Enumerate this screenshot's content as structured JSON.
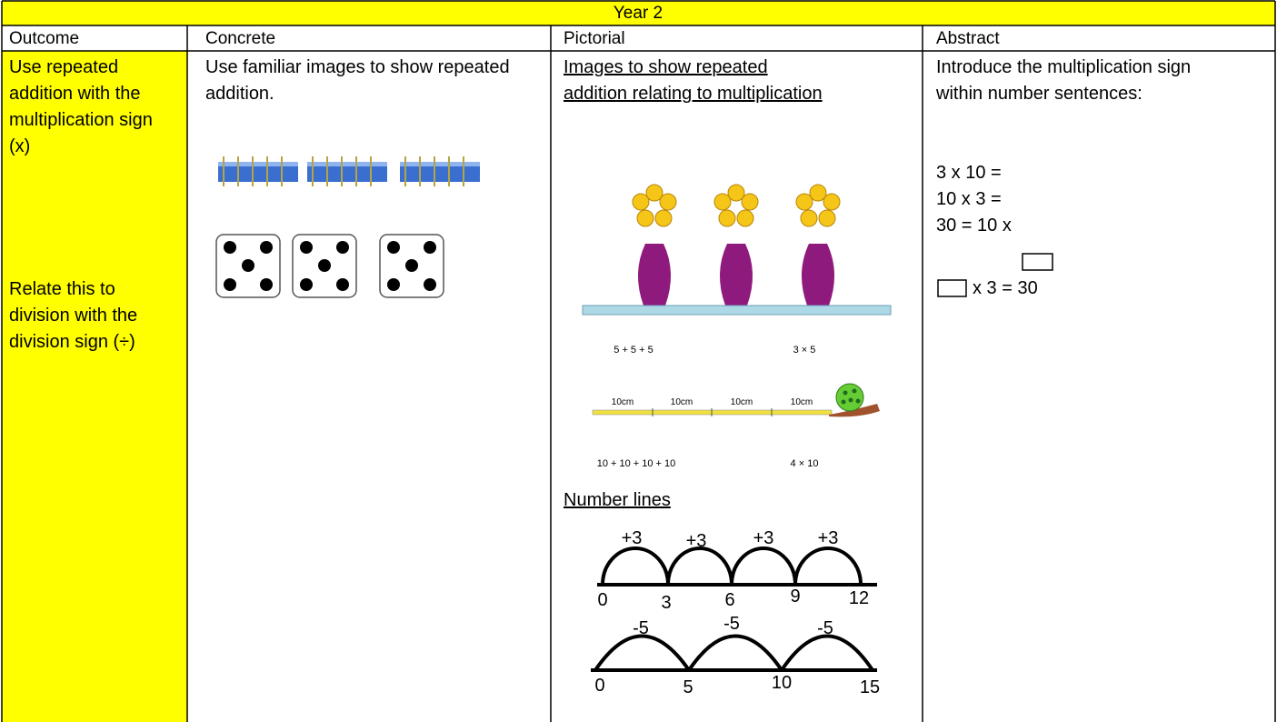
{
  "title": "Year 2",
  "headers": [
    "Outcome",
    "Concrete",
    "Pictorial",
    "Abstract"
  ],
  "outcome": {
    "paragraphs": [
      "Use repeated addition with the multiplication sign (x)",
      "Relate this to division with the division sign (÷)"
    ]
  },
  "concrete": {
    "text": "Use familiar images to show repeated addition."
  },
  "pictorial": {
    "heading": "Images to show repeated addition relating to multiplication",
    "flower_captions": [
      "5 + 5 + 5",
      "3 × 5"
    ],
    "segment_labels": [
      "10cm",
      "10cm",
      "10cm",
      "10cm"
    ],
    "snail_captions": [
      "10 + 10 + 10 + 10",
      "4 × 10"
    ],
    "number_lines_heading": "Number lines",
    "number_line_1": {
      "jumps": [
        "+3",
        "+3",
        "+3",
        "+3"
      ],
      "ticks": [
        "0",
        "3",
        "6",
        "9",
        "12"
      ]
    },
    "number_line_2": {
      "jumps": [
        "-5",
        "-5",
        "-5"
      ],
      "ticks": [
        "0",
        "5",
        "10",
        "15"
      ]
    }
  },
  "abstract": {
    "intro": "Introduce the multiplication sign within number sentences:",
    "sentences": [
      "3 x 10 =",
      "10 x 3 =",
      "30 = 10 x",
      "x 3 = 30"
    ]
  }
}
